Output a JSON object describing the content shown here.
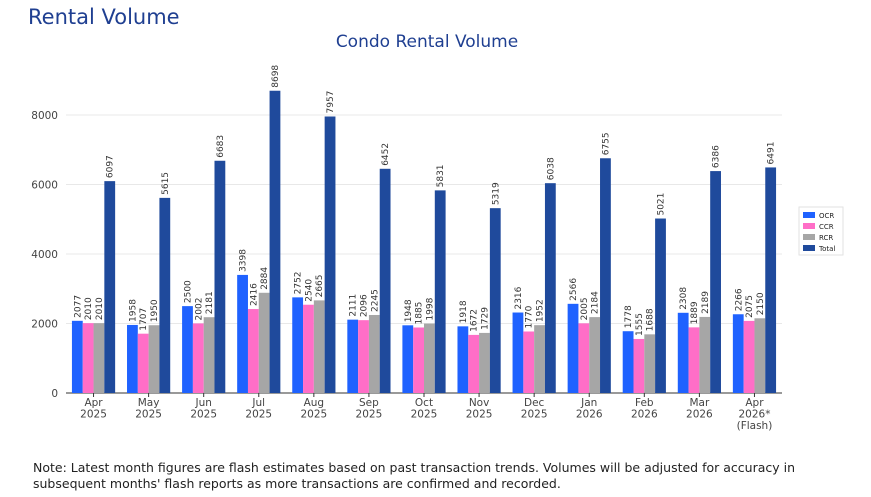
{
  "page": {
    "title": "Rental Volume",
    "note": "Note: Latest month figures are flash estimates based on past transaction trends. Volumes will be adjusted for accuracy in subsequent months' flash reports as more transactions are confirmed and recorded."
  },
  "chart_data": {
    "type": "bar",
    "title": "Condo Rental Volume",
    "xlabel": "",
    "ylabel": "",
    "ylim": [
      0,
      9000
    ],
    "yticks": [
      0,
      2000,
      4000,
      6000,
      8000
    ],
    "grid": true,
    "legend_position": "right",
    "categories": [
      [
        "Apr",
        "2025"
      ],
      [
        "May",
        "2025"
      ],
      [
        "Jun",
        "2025"
      ],
      [
        "Jul",
        "2025"
      ],
      [
        "Aug",
        "2025"
      ],
      [
        "Sep",
        "2025"
      ],
      [
        "Oct",
        "2025"
      ],
      [
        "Nov",
        "2025"
      ],
      [
        "Dec",
        "2025"
      ],
      [
        "Jan",
        "2026"
      ],
      [
        "Feb",
        "2026"
      ],
      [
        "Mar",
        "2026"
      ],
      [
        "Apr",
        "2026*",
        "(Flash)"
      ]
    ],
    "series": [
      {
        "name": "OCR",
        "color": "#1f62ff",
        "values": [
          2077,
          1958,
          2500,
          3398,
          2752,
          2111,
          1948,
          1918,
          2316,
          2566,
          1778,
          2308,
          2266
        ]
      },
      {
        "name": "CCR",
        "color": "#ff6ec7",
        "values": [
          2010,
          1707,
          2002,
          2416,
          2540,
          2096,
          1885,
          1672,
          1770,
          2005,
          1555,
          1889,
          2075
        ]
      },
      {
        "name": "RCR",
        "color": "#a6a6a6",
        "values": [
          2010,
          1950,
          2181,
          2884,
          2665,
          2245,
          1998,
          1729,
          1952,
          2184,
          1688,
          2189,
          2150
        ]
      },
      {
        "name": "Total",
        "color": "#1f4a9c",
        "values": [
          6097,
          5615,
          6683,
          8698,
          7957,
          6452,
          5831,
          5319,
          6038,
          6755,
          5021,
          6386,
          6491
        ]
      }
    ]
  }
}
